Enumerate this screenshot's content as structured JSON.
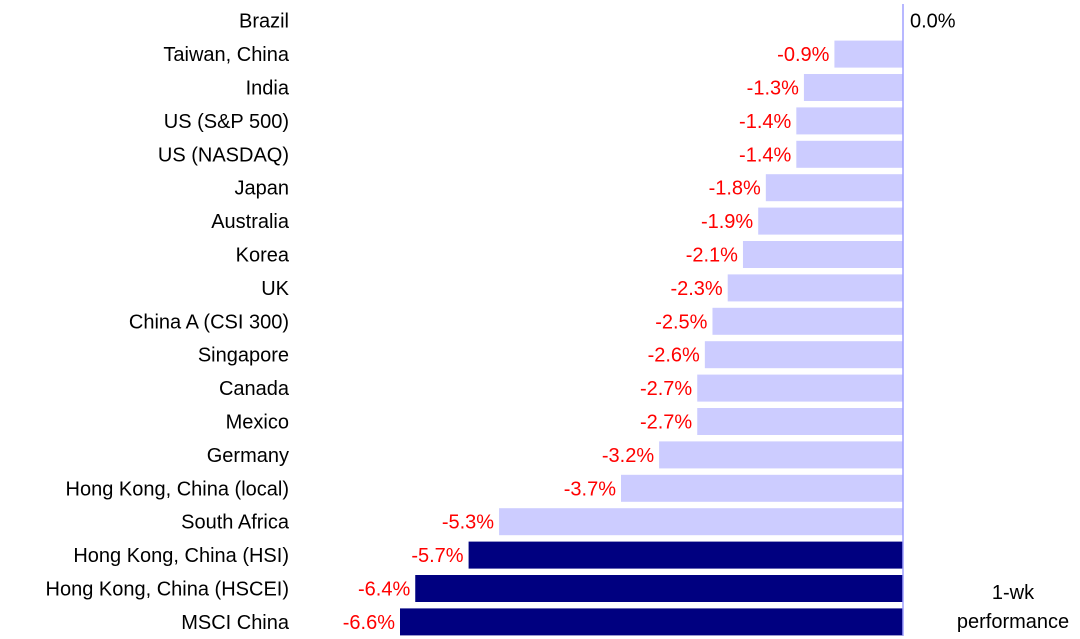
{
  "chart_data": {
    "type": "bar",
    "orientation": "horizontal",
    "categories": [
      "Brazil",
      "Taiwan, China",
      "India",
      "US (S&P 500)",
      "US (NASDAQ)",
      "Japan",
      "Australia",
      "Korea",
      "UK",
      "China A (CSI 300)",
      "Singapore",
      "Canada",
      "Mexico",
      "Germany",
      "Hong Kong, China (local)",
      "South Africa",
      "Hong Kong, China (HSI)",
      "Hong Kong, China (HSCEI)",
      "MSCI China"
    ],
    "values": [
      0.0,
      -0.9,
      -1.3,
      -1.4,
      -1.4,
      -1.8,
      -1.9,
      -2.1,
      -2.3,
      -2.5,
      -2.6,
      -2.7,
      -2.7,
      -3.2,
      -3.7,
      -5.3,
      -5.7,
      -6.4,
      -6.6
    ],
    "value_labels": [
      "0.0%",
      "-0.9%",
      "-1.3%",
      "-1.4%",
      "-1.4%",
      "-1.8%",
      "-1.9%",
      "-2.1%",
      "-2.3%",
      "-2.5%",
      "-2.6%",
      "-2.7%",
      "-2.7%",
      "-3.2%",
      "-3.7%",
      "-5.3%",
      "-5.7%",
      "-6.4%",
      "-6.6%"
    ],
    "highlighted": [
      "Hong Kong, China (HSI)",
      "Hong Kong, China (HSCEI)",
      "MSCI China"
    ],
    "xlim": [
      -6.6,
      0
    ],
    "grid": false,
    "legend": "none",
    "annotation": [
      "1-wk",
      "performance"
    ],
    "colors": {
      "bar": "#ccccff",
      "highlight_bar": "#000080",
      "negative_label": "#ff0000",
      "zero_label": "#000000",
      "axis": "#a0a0ff"
    }
  }
}
